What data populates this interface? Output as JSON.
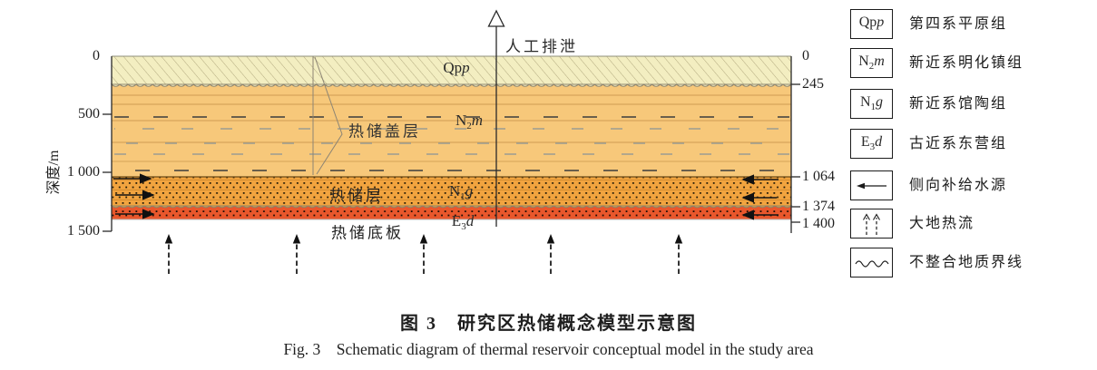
{
  "figure": {
    "caption_cn": "图 3　研究区热储概念模型示意图",
    "caption_en": "Fig. 3　Schematic diagram of thermal reservoir conceptual model in the study area"
  },
  "axis_left": {
    "title": "深度/m",
    "ticks": [
      "0",
      "500",
      "1 000",
      "1 500"
    ]
  },
  "axis_right": {
    "ticks": [
      "0",
      "245",
      "1 064",
      "1 374",
      "1 400"
    ]
  },
  "annotations": {
    "discharge": "人工排泄",
    "cap_rock": "热储盖层",
    "reservoir": "热储层",
    "floor": "热储底板"
  },
  "strata": [
    {
      "symbol": {
        "prefix": "Qp",
        "sub": "",
        "it": "p"
      },
      "name": "第四系平原组",
      "color": "#f3eec1",
      "top_m": 0,
      "bottom_m": 245
    },
    {
      "symbol": {
        "prefix": "N",
        "sub": "2",
        "it": "m"
      },
      "name": "新近系明化镇组",
      "color": "#f7c87a",
      "top_m": 245,
      "bottom_m": 1064
    },
    {
      "symbol": {
        "prefix": "N",
        "sub": "1",
        "it": "g"
      },
      "name": "新近系馆陶组",
      "color": "#f2a43f",
      "top_m": 1064,
      "bottom_m": 1374
    },
    {
      "symbol": {
        "prefix": "E",
        "sub": "3",
        "it": "d"
      },
      "name": "古近系东营组",
      "color": "#e9572c",
      "top_m": 1374,
      "bottom_m": 1400
    }
  ],
  "legend_other": [
    {
      "icon": "left-arrow-icon",
      "name": "侧向补给水源"
    },
    {
      "icon": "dashed-up-arrows-icon",
      "name": "大地热流"
    },
    {
      "icon": "wavy-line-icon",
      "name": "不整合地质界线"
    }
  ]
}
